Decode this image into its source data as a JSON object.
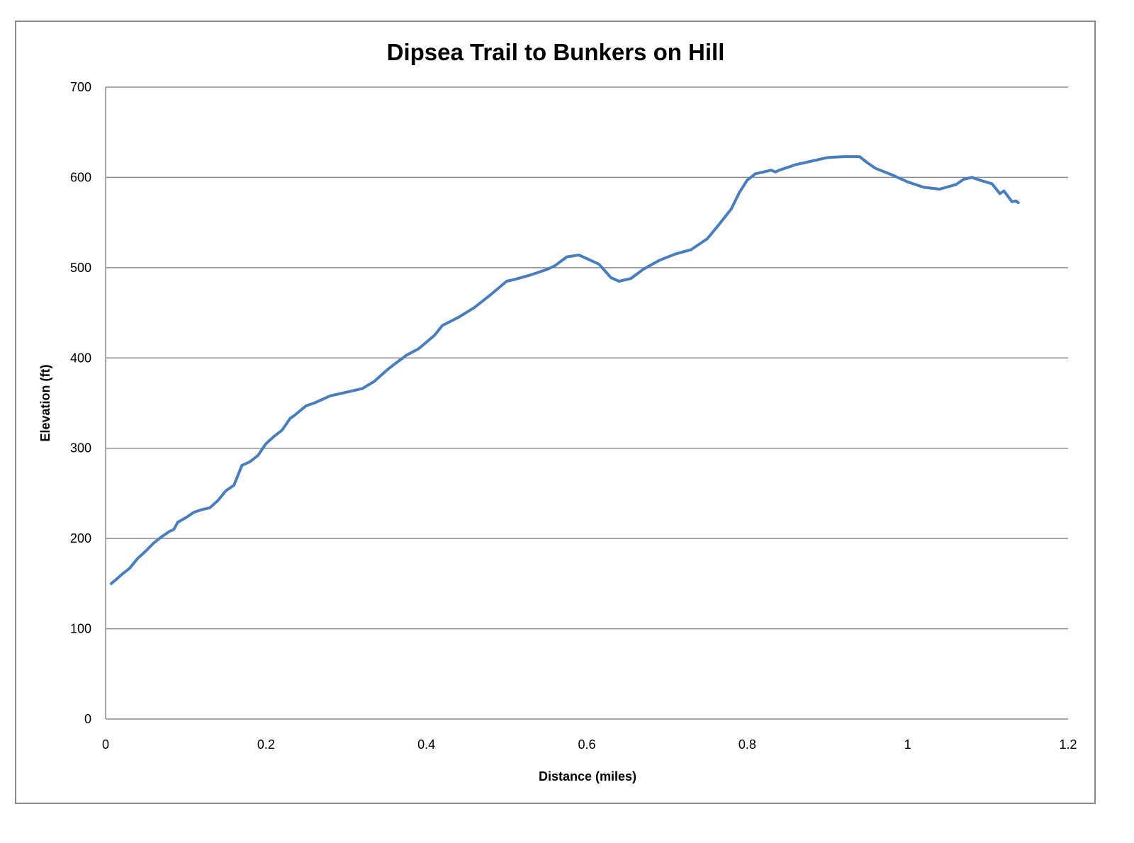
{
  "chart_data": {
    "type": "line",
    "title": "Dipsea Trail to Bunkers on Hill",
    "xlabel": "Distance (miles)",
    "ylabel": "Elevation (ft)",
    "xlim": [
      0,
      1.2
    ],
    "ylim": [
      0,
      700
    ],
    "x_ticks": [
      "0",
      "0.2",
      "0.4",
      "0.6",
      "0.8",
      "1",
      "1.2"
    ],
    "y_ticks": [
      "0",
      "100",
      "200",
      "300",
      "400",
      "500",
      "600",
      "700"
    ],
    "grid": "horizontal",
    "legend": "none",
    "series": [
      {
        "color": "#4a7ebb",
        "x": [
          0.007,
          0.015,
          0.02,
          0.03,
          0.04,
          0.05,
          0.06,
          0.07,
          0.08,
          0.085,
          0.09,
          0.1,
          0.11,
          0.12,
          0.13,
          0.14,
          0.15,
          0.16,
          0.17,
          0.18,
          0.19,
          0.2,
          0.21,
          0.22,
          0.23,
          0.235,
          0.25,
          0.26,
          0.28,
          0.3,
          0.32,
          0.335,
          0.35,
          0.36,
          0.375,
          0.39,
          0.41,
          0.42,
          0.44,
          0.46,
          0.48,
          0.5,
          0.51,
          0.53,
          0.55,
          0.56,
          0.575,
          0.59,
          0.6,
          0.615,
          0.63,
          0.64,
          0.655,
          0.67,
          0.69,
          0.71,
          0.73,
          0.75,
          0.765,
          0.78,
          0.79,
          0.8,
          0.81,
          0.82,
          0.83,
          0.835,
          0.84,
          0.86,
          0.88,
          0.9,
          0.92,
          0.94,
          0.95,
          0.96,
          0.98,
          1.0,
          1.02,
          1.04,
          1.06,
          1.07,
          1.08,
          1.09,
          1.105,
          1.115,
          1.12,
          1.13,
          1.135,
          1.138
        ],
        "y": [
          150,
          156,
          160,
          167,
          178,
          186,
          195,
          202,
          208,
          210,
          218,
          223,
          229,
          232,
          234,
          242,
          253,
          259,
          281,
          285,
          292,
          305,
          313,
          320,
          333,
          336,
          347,
          350,
          358,
          362,
          366,
          374,
          386,
          393,
          403,
          410,
          425,
          436,
          445,
          456,
          470,
          485,
          487,
          492,
          498,
          502,
          512,
          514,
          510,
          504,
          489,
          485,
          488,
          498,
          508,
          515,
          520,
          532,
          548,
          565,
          583,
          597,
          604,
          606,
          608,
          606,
          608,
          614,
          618,
          622,
          623,
          623,
          616,
          610,
          603,
          595,
          589,
          587,
          592,
          598,
          600,
          597,
          593,
          582,
          585,
          573,
          574,
          572
        ]
      }
    ]
  }
}
